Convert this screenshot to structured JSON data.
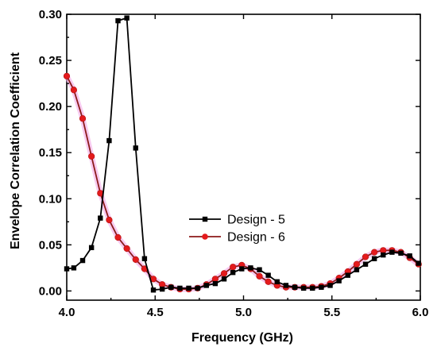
{
  "chart_data": {
    "type": "line",
    "xlabel": "Frequency (GHz)",
    "ylabel": "Envelope Correlation Coefficient",
    "xlim": [
      4.0,
      6.0
    ],
    "ylim": [
      -0.01,
      0.3
    ],
    "xticks": [
      4.0,
      4.5,
      5.0,
      5.5,
      6.0
    ],
    "xtick_labels": [
      "4.0",
      "4.5",
      "5.0",
      "5.5",
      "6.0"
    ],
    "yticks": [
      0.0,
      0.05,
      0.1,
      0.15,
      0.2,
      0.25,
      0.3
    ],
    "ytick_labels": [
      "0.00",
      "0.05",
      "0.10",
      "0.15",
      "0.20",
      "0.25",
      "0.30"
    ],
    "legend_position": "center-right",
    "grid": false,
    "series": [
      {
        "name": "Design - 5",
        "color": "#000000",
        "marker": "square",
        "x": [
          4.0,
          4.04,
          4.09,
          4.14,
          4.19,
          4.24,
          4.29,
          4.34,
          4.39,
          4.44,
          4.49,
          4.54,
          4.59,
          4.64,
          4.69,
          4.74,
          4.79,
          4.84,
          4.89,
          4.94,
          4.99,
          5.04,
          5.09,
          5.14,
          5.19,
          5.24,
          5.29,
          5.34,
          5.39,
          5.44,
          5.49,
          5.54,
          5.59,
          5.64,
          5.69,
          5.74,
          5.79,
          5.84,
          5.89,
          5.94,
          5.99
        ],
        "y": [
          0.024,
          0.025,
          0.033,
          0.047,
          0.079,
          0.163,
          0.293,
          0.296,
          0.155,
          0.035,
          0.001,
          0.002,
          0.004,
          0.003,
          0.003,
          0.003,
          0.006,
          0.008,
          0.013,
          0.02,
          0.024,
          0.025,
          0.023,
          0.017,
          0.01,
          0.006,
          0.004,
          0.003,
          0.003,
          0.004,
          0.006,
          0.011,
          0.017,
          0.023,
          0.029,
          0.035,
          0.039,
          0.042,
          0.041,
          0.038,
          0.03
        ]
      },
      {
        "name": "Design - 6",
        "color": "#e41a1c",
        "marker": "circle",
        "x": [
          4.0,
          4.04,
          4.09,
          4.14,
          4.19,
          4.24,
          4.29,
          4.34,
          4.39,
          4.44,
          4.49,
          4.54,
          4.59,
          4.64,
          4.69,
          4.74,
          4.79,
          4.84,
          4.89,
          4.94,
          4.99,
          5.04,
          5.09,
          5.14,
          5.19,
          5.24,
          5.29,
          5.34,
          5.39,
          5.44,
          5.49,
          5.54,
          5.59,
          5.64,
          5.69,
          5.74,
          5.79,
          5.84,
          5.89,
          5.94,
          5.99
        ],
        "y": [
          0.233,
          0.218,
          0.187,
          0.146,
          0.106,
          0.077,
          0.058,
          0.046,
          0.034,
          0.024,
          0.013,
          0.007,
          0.004,
          0.002,
          0.002,
          0.003,
          0.007,
          0.013,
          0.019,
          0.026,
          0.028,
          0.024,
          0.016,
          0.01,
          0.006,
          0.004,
          0.004,
          0.004,
          0.004,
          0.005,
          0.008,
          0.014,
          0.021,
          0.029,
          0.037,
          0.042,
          0.044,
          0.044,
          0.042,
          0.036,
          0.029
        ]
      }
    ]
  }
}
